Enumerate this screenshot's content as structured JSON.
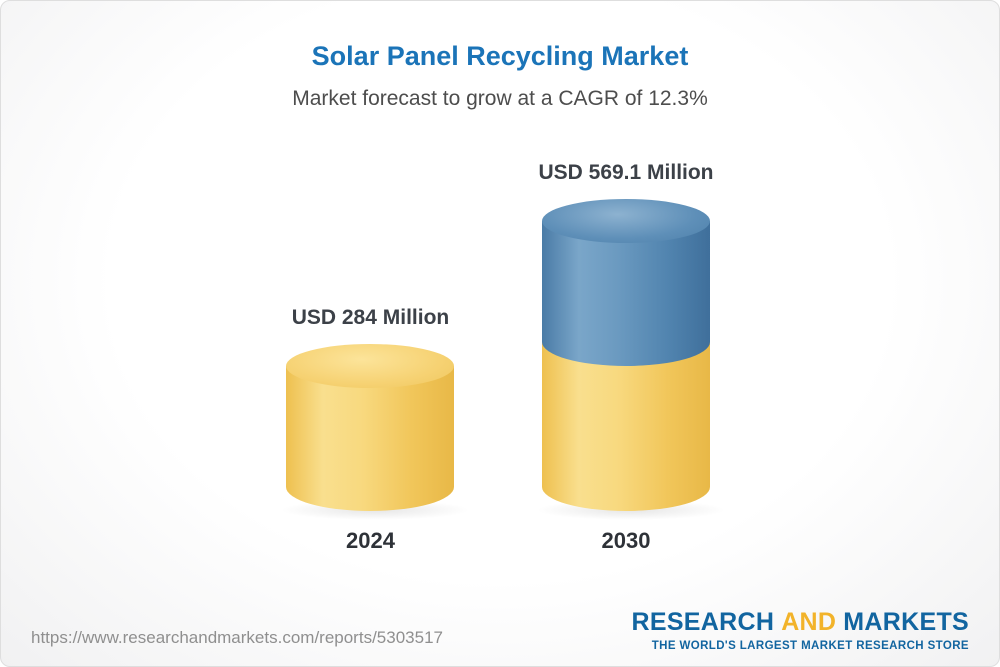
{
  "chart_data": {
    "type": "bar",
    "bar_style": "3d-cylinder",
    "title": "Solar Panel Recycling Market",
    "subtitle": "Market forecast to grow at a CAGR of 12.3%",
    "cagr": "12.3%",
    "unit": "USD Million",
    "categories": [
      "2024",
      "2030"
    ],
    "values": [
      284,
      569.1
    ],
    "value_labels": [
      "USD 284 Million",
      "USD 569.1 Million"
    ],
    "grid": false,
    "legend": false,
    "colors": {
      "title_blue": "#1b74b8",
      "bar_yellow": "#f5cf68",
      "bar_blue": "#5589b5",
      "label_dark": "#3c4148"
    }
  },
  "footer": {
    "url": "https://www.researchandmarkets.com/reports/5303517",
    "logo": {
      "word1": "RESEARCH",
      "word2": "AND",
      "word3": "MARKETS",
      "tagline": "THE WORLD'S LARGEST MARKET RESEARCH STORE"
    }
  }
}
